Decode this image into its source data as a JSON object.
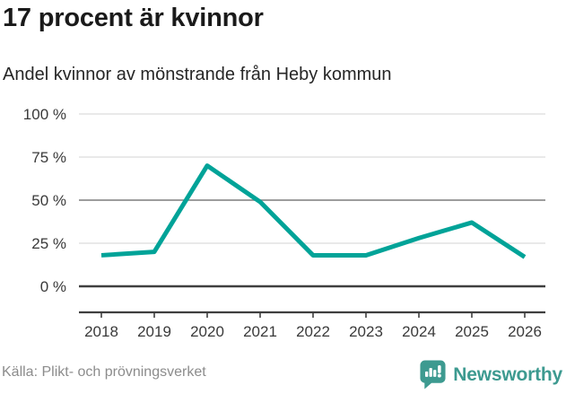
{
  "header": {
    "title": "17 procent är kvinnor",
    "subtitle": "Andel kvinnor av mönstrande från Heby kommun"
  },
  "chart_data": {
    "type": "line",
    "title": "17 procent är kvinnor",
    "subtitle": "Andel kvinnor av mönstrande från Heby kommun",
    "x": [
      2018,
      2019,
      2020,
      2021,
      2022,
      2023,
      2024,
      2025,
      2026
    ],
    "x_tick_labels": [
      "2018",
      "2019",
      "2020",
      "2021",
      "2022",
      "2023",
      "2024",
      "2025",
      "2026"
    ],
    "values": [
      18,
      20,
      70,
      49,
      18,
      18,
      28,
      37,
      17
    ],
    "series_name": "Andel kvinnor av mönstrande",
    "unit": "%",
    "ylim": [
      0,
      100
    ],
    "yticks": [
      0,
      25,
      50,
      75,
      100
    ],
    "y_tick_labels": [
      "0 %",
      "25 %",
      "50 %",
      "75 %",
      "100 %"
    ],
    "grid": true,
    "legend": "none",
    "line_color": "#00a398",
    "gridline_color": "#dcdcdc",
    "midline_color": "#8f8f8f",
    "axis_color": "#3f3f3f"
  },
  "footer": {
    "source": "Källa: Plikt- och prövningsverket",
    "brand": "Newsworthy",
    "brand_color": "#3d9a90",
    "logo_icon": "newsworthy-speech-bubble-bar-chart-icon"
  }
}
